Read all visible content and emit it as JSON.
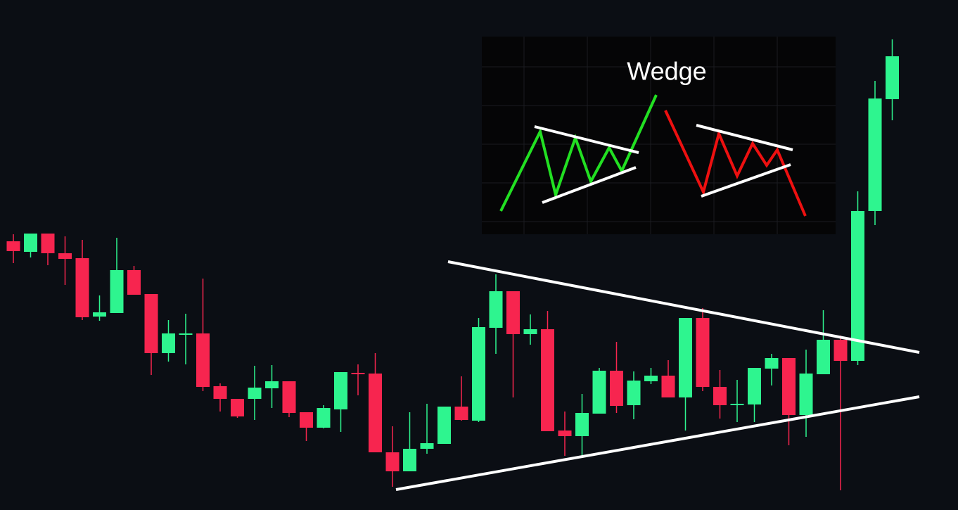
{
  "chart_data": {
    "type": "candlestick",
    "annotation": "Wedge",
    "up_color": "#2ef58f",
    "down_color": "#f7254f",
    "ylim": [
      0,
      725
    ],
    "open": [
      382,
      367,
      393,
      365,
      358,
      275,
      280,
      341,
      307,
      223,
      249,
      251,
      176,
      158,
      158,
      173,
      183,
      139,
      117,
      143,
      195,
      194,
      82,
      55,
      87,
      94,
      147,
      127,
      259,
      311,
      250,
      257,
      113,
      105,
      137,
      198,
      149,
      183,
      191,
      160,
      273,
      175,
      149,
      150,
      201,
      216,
      135,
      193,
      242,
      212,
      425,
      584
    ],
    "high": [
      392,
      393,
      393,
      389,
      384,
      305,
      387,
      347,
      307,
      270,
      279,
      329,
      180,
      158,
      205,
      206,
      183,
      139,
      149,
      196,
      207,
      223,
      119,
      139,
      151,
      147,
      190,
      273,
      335,
      311,
      278,
      283,
      140,
      165,
      202,
      239,
      197,
      202,
      213,
      273,
      287,
      199,
      185,
      202,
      222,
      216,
      228,
      284,
      248,
      453,
      610,
      669
    ],
    "low": [
      351,
      359,
      348,
      320,
      270,
      269,
      280,
      306,
      192,
      211,
      207,
      169,
      140,
      131,
      128,
      145,
      132,
      98,
      116,
      111,
      163,
      82,
      33,
      55,
      80,
      94,
      127,
      125,
      222,
      160,
      235,
      112,
      77,
      75,
      137,
      138,
      129,
      179,
      160,
      113,
      169,
      130,
      125,
      125,
      177,
      92,
      104,
      193,
      28,
      206,
      405,
      554
    ],
    "close": [
      368,
      393,
      365,
      357,
      274,
      281,
      341,
      306,
      223,
      251,
      251,
      175,
      158,
      133,
      174,
      183,
      138,
      117,
      145,
      196,
      193,
      82,
      55,
      87,
      95,
      147,
      128,
      260,
      311,
      250,
      257,
      112,
      105,
      138,
      198,
      148,
      184,
      191,
      160,
      273,
      175,
      149,
      151,
      202,
      216,
      135,
      194,
      242,
      212,
      425,
      585,
      645
    ]
  }
}
